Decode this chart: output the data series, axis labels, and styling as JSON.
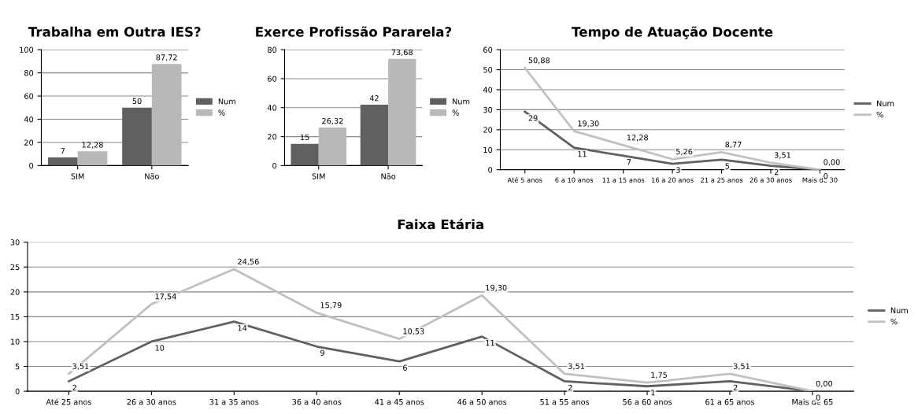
{
  "chart_data": [
    {
      "type": "bar",
      "title": "Trabalha em Outra IES?",
      "categories": [
        "SIM",
        "Não"
      ],
      "ylim": [
        0,
        100
      ],
      "yticks": [
        0,
        20,
        40,
        60,
        80,
        100
      ],
      "grid": "y",
      "legend": "right",
      "series": [
        {
          "name": "Num",
          "color": "#606060",
          "values": [
            7,
            50
          ],
          "value_labels": [
            "7",
            "50"
          ]
        },
        {
          "name": "%",
          "color": "#b8b8b8",
          "values": [
            12.28,
            87.72
          ],
          "value_labels": [
            "12,28",
            "87,72"
          ]
        }
      ]
    },
    {
      "type": "bar",
      "title": "Exerce Profissão Pararela?",
      "categories": [
        "SIM",
        "Não"
      ],
      "ylim": [
        0,
        80
      ],
      "yticks": [
        0,
        20,
        40,
        60,
        80
      ],
      "grid": "y",
      "legend": "right",
      "series": [
        {
          "name": "Num",
          "color": "#606060",
          "values": [
            15,
            42
          ],
          "value_labels": [
            "15",
            "42"
          ]
        },
        {
          "name": "%",
          "color": "#b8b8b8",
          "values": [
            26.32,
            73.68
          ],
          "value_labels": [
            "26,32",
            "73,68"
          ]
        }
      ]
    },
    {
      "type": "line",
      "title": "Tempo de Atuação Docente",
      "categories": [
        "Até 5 anos",
        "6 a 10 anos",
        "11 a 15 anos",
        "16 a 20 anos",
        "21 a 25 anos",
        "26 a 30 anos",
        "Mais de 30"
      ],
      "ylim": [
        0,
        60
      ],
      "yticks": [
        0,
        10,
        20,
        30,
        40,
        50,
        60
      ],
      "grid": "y",
      "legend": "right",
      "marker": "none",
      "series": [
        {
          "name": "Num",
          "color": "#606060",
          "values": [
            29,
            11,
            7,
            3,
            5,
            2,
            0
          ],
          "value_labels": [
            "29",
            "11",
            "7",
            "3",
            "5",
            "2",
            "0"
          ]
        },
        {
          "name": "%",
          "color": "#c0c0c0",
          "values": [
            50.88,
            19.3,
            12.28,
            5.26,
            8.77,
            3.51,
            0.0
          ],
          "value_labels": [
            "50,88",
            "19,30",
            "12,28",
            "5,26",
            "8,77",
            "3,51",
            "0,00"
          ]
        }
      ]
    },
    {
      "type": "line",
      "title": "Faixa Etária",
      "categories": [
        "Até 25 anos",
        "26 a 30 anos",
        "31 a 35 anos",
        "36 a 40 anos",
        "41 a 45 anos",
        "46 a 50 anos",
        "51 a 55 anos",
        "56 a 60 anos",
        "61 a 65 anos",
        "Mais de 65"
      ],
      "ylim": [
        0,
        30
      ],
      "yticks": [
        0,
        5,
        10,
        15,
        20,
        25,
        30
      ],
      "grid": "y",
      "legend": "right",
      "marker": "none",
      "series": [
        {
          "name": "Num",
          "color": "#606060",
          "values": [
            2,
            10,
            14,
            9,
            6,
            11,
            2,
            1,
            2,
            0
          ],
          "value_labels": [
            "2",
            "10",
            "14",
            "9",
            "6",
            "11",
            "2",
            "1",
            "2",
            "0"
          ]
        },
        {
          "name": "%",
          "color": "#c0c0c0",
          "values": [
            3.51,
            17.54,
            24.56,
            15.79,
            10.53,
            19.3,
            3.51,
            1.75,
            3.51,
            0.0
          ],
          "value_labels": [
            "3,51",
            "17,54",
            "24,56",
            "15,79",
            "10,53",
            "19,30",
            "3,51",
            "1,75",
            "3,51",
            "0,00"
          ]
        }
      ]
    }
  ]
}
